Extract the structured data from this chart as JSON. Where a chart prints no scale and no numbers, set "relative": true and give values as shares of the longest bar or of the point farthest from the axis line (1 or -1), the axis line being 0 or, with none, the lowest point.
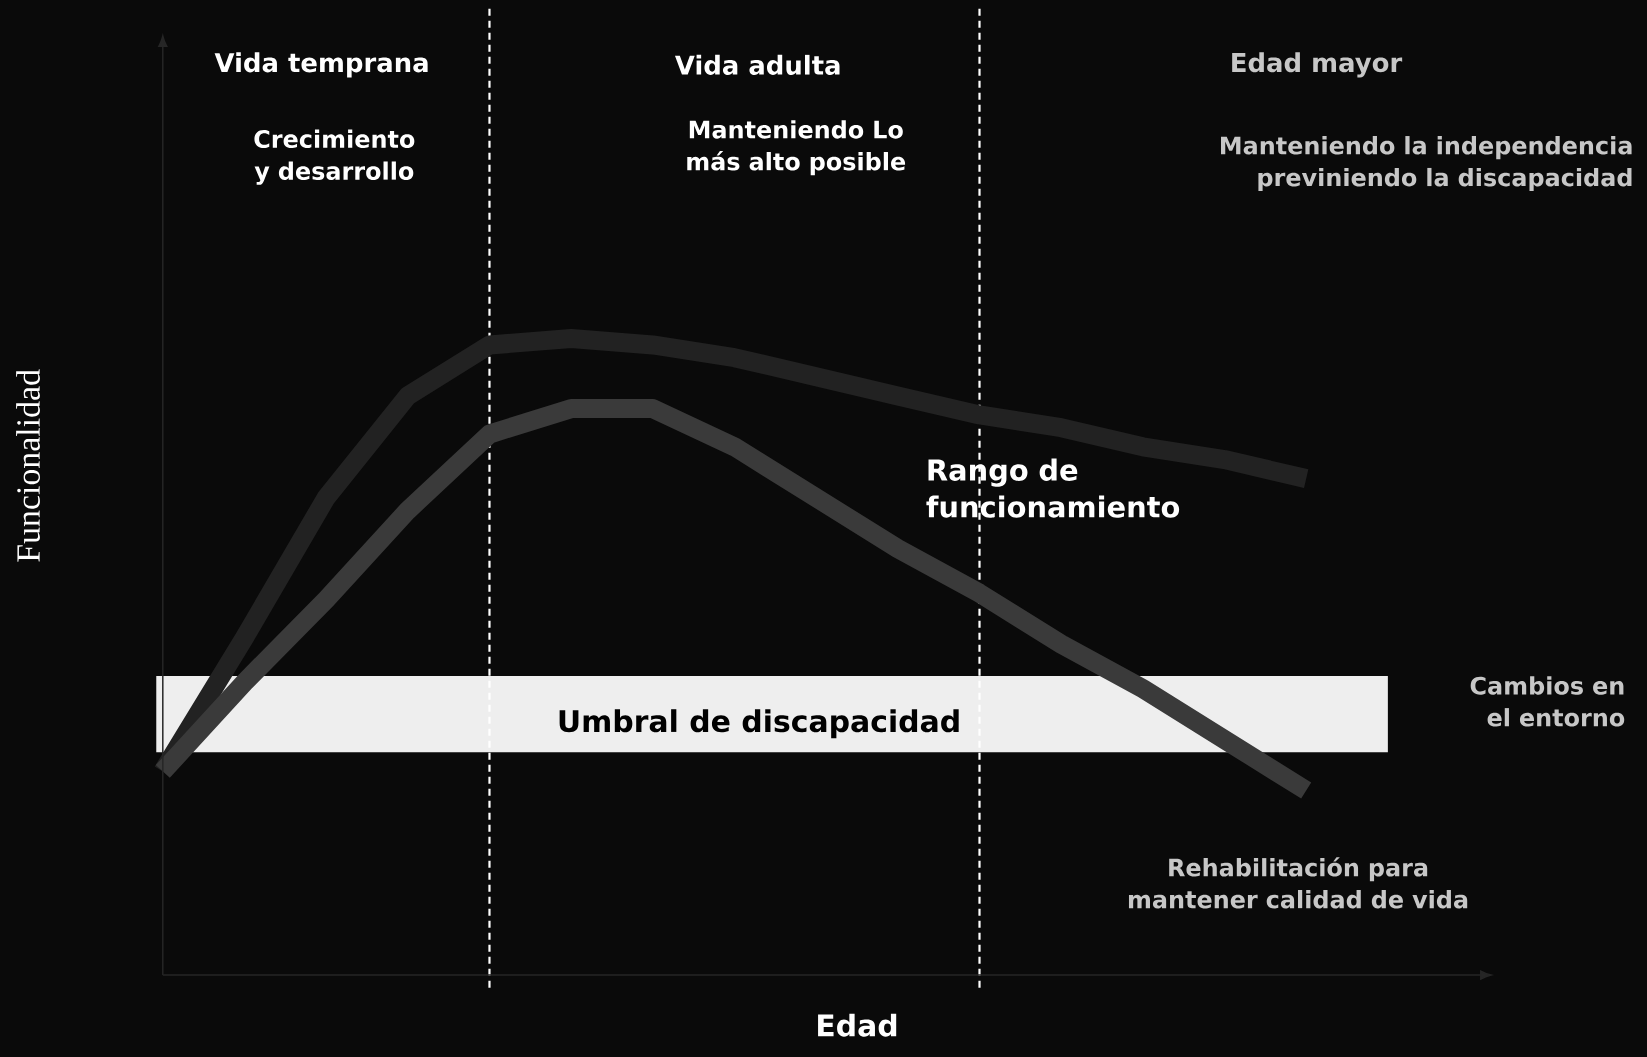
{
  "chart_data": {
    "type": "line",
    "relative": true,
    "xlabel": "Edad",
    "ylabel": "Funcionalidad",
    "categories": [
      null,
      null,
      null,
      null,
      null,
      null,
      null,
      null,
      null,
      null,
      null,
      null,
      null,
      null,
      null
    ],
    "series": [
      {
        "color": "#222222",
        "values": [
          0.32,
          0.53,
          0.75,
          0.91,
          0.99,
          1.0,
          0.99,
          0.97,
          0.94,
          0.91,
          0.88,
          0.86,
          0.83,
          0.81,
          0.78
        ]
      },
      {
        "color": "#3a3a3a",
        "values": [
          0.32,
          0.46,
          0.59,
          0.73,
          0.85,
          0.89,
          0.89,
          0.83,
          0.75,
          0.67,
          0.6,
          0.52,
          0.45,
          0.37,
          0.29
        ]
      }
    ],
    "bands": [
      {
        "axis": "y",
        "from": 0.35,
        "to": 0.47,
        "label": "Umbral de discapacidad",
        "color": "#eeeeee"
      }
    ],
    "annotations": [
      "Vida temprana",
      "Vida adulta",
      "Edad mayor",
      "Crecimiento y desarrollo",
      "Manteniendo Lo más alto posible",
      "Manteniendo la independencia previniendo la discapacidad",
      "Rango de funcionamiento",
      "Cambios en el entorno",
      "Rehabilitación para mantener calidad de vida"
    ]
  }
}
